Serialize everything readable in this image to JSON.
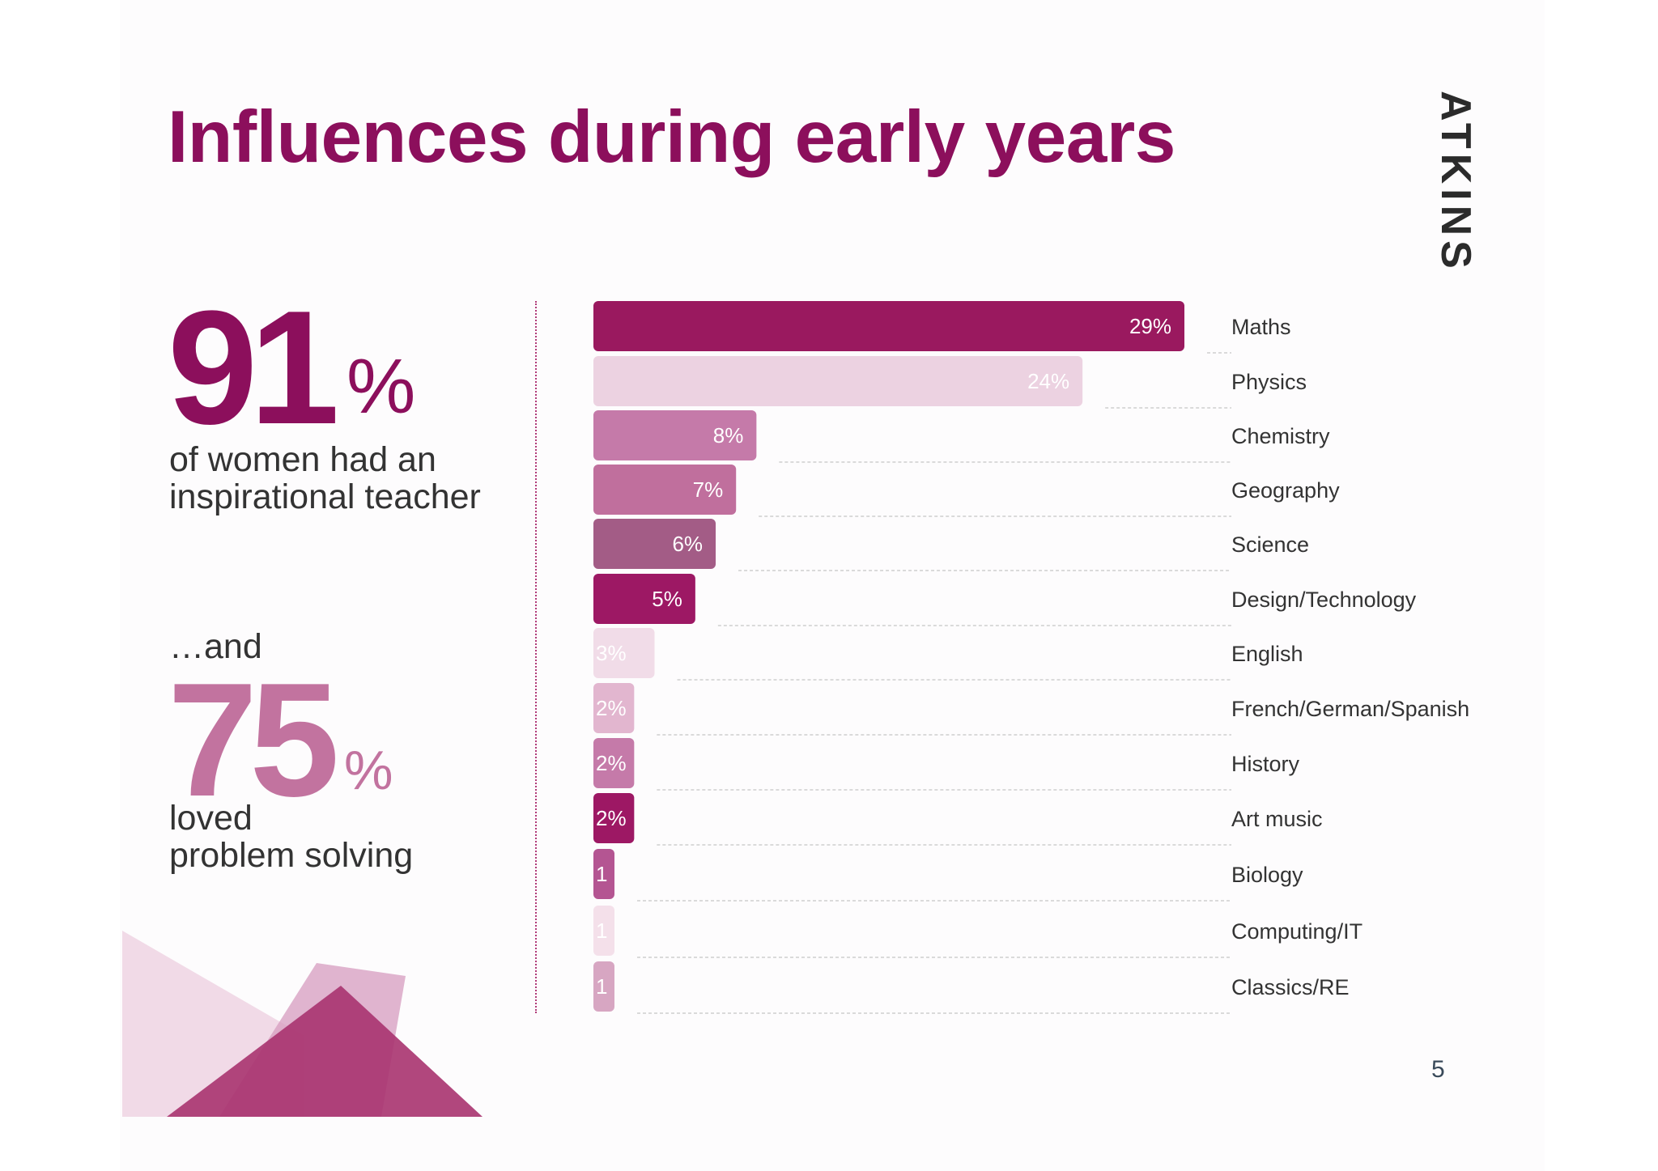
{
  "title": "Influences during early years",
  "brand": "ATKINS",
  "page_number": "5",
  "stat1": {
    "value": "91",
    "unit": "%",
    "description_line1": "of women had an",
    "description_line2": "inspirational teacher"
  },
  "stat2": {
    "intro": "…and",
    "value": "75",
    "unit": "%",
    "description_line1": "loved",
    "description_line2": "problem solving"
  },
  "colors": {
    "brand": "#8c0f5c",
    "accent_light": "#c2739f",
    "text": "#333333"
  },
  "chart_data": {
    "type": "bar",
    "orientation": "horizontal",
    "categories": [
      "Maths",
      "Physics",
      "Chemistry",
      "Geography",
      "Science",
      "Design/Technology",
      "English",
      "French/German/Spanish",
      "History",
      "Art music",
      "Biology",
      "Computing/IT",
      "Classics/RE"
    ],
    "values": [
      29,
      24,
      8,
      7,
      6,
      5,
      3,
      2,
      2,
      2,
      1,
      1,
      1
    ],
    "data_labels": [
      "29%",
      "24%",
      "8%",
      "7%",
      "6%",
      "5%",
      "3%",
      "2%",
      "2%",
      "2%",
      "1",
      "1",
      "1"
    ],
    "bar_colors": [
      "#9a195f",
      "#ecd2e1",
      "#c57aa9",
      "#c06f9d",
      "#a35c86",
      "#9d1864",
      "#f1dce8",
      "#e2b6cf",
      "#c57aa9",
      "#9d1864",
      "#b45592",
      "#f4e0ea",
      "#d7a6c2"
    ],
    "label_colors": [
      "#ffffff",
      "#ffffff",
      "#ffffff",
      "#ffffff",
      "#ffffff",
      "#ffffff",
      "#ffffff",
      "#ffffff",
      "#ffffff",
      "#ffffff",
      "#ffffff",
      "#ffffff",
      "#ffffff"
    ],
    "xlim": [
      0,
      29
    ],
    "title": "",
    "xlabel": "",
    "ylabel": "",
    "legend": "none",
    "grid": false
  }
}
